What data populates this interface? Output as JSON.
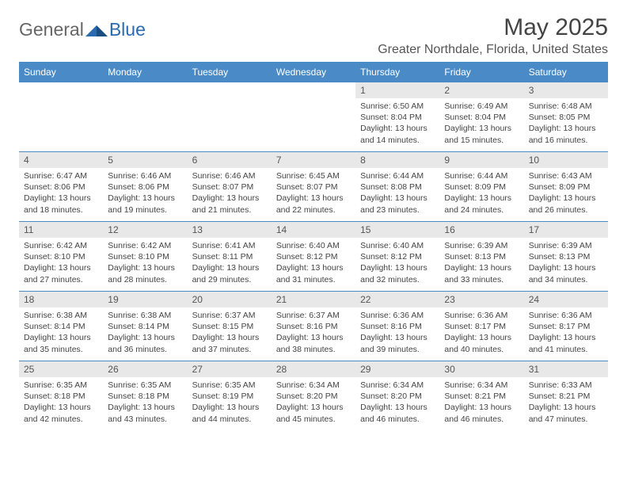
{
  "logo": {
    "text_left": "General",
    "text_right": "Blue"
  },
  "title": {
    "month": "May 2025",
    "location": "Greater Northdale, Florida, United States"
  },
  "colors": {
    "header_bg": "#4a8bc7",
    "header_text": "#ffffff",
    "daynum_bg": "#e8e8e8",
    "border": "#4a8bc7"
  },
  "days_header": [
    "Sunday",
    "Monday",
    "Tuesday",
    "Wednesday",
    "Thursday",
    "Friday",
    "Saturday"
  ],
  "weeks": [
    [
      {
        "num": "",
        "sunrise": "",
        "sunset": "",
        "daylight": ""
      },
      {
        "num": "",
        "sunrise": "",
        "sunset": "",
        "daylight": ""
      },
      {
        "num": "",
        "sunrise": "",
        "sunset": "",
        "daylight": ""
      },
      {
        "num": "",
        "sunrise": "",
        "sunset": "",
        "daylight": ""
      },
      {
        "num": "1",
        "sunrise": "Sunrise: 6:50 AM",
        "sunset": "Sunset: 8:04 PM",
        "daylight": "Daylight: 13 hours and 14 minutes."
      },
      {
        "num": "2",
        "sunrise": "Sunrise: 6:49 AM",
        "sunset": "Sunset: 8:04 PM",
        "daylight": "Daylight: 13 hours and 15 minutes."
      },
      {
        "num": "3",
        "sunrise": "Sunrise: 6:48 AM",
        "sunset": "Sunset: 8:05 PM",
        "daylight": "Daylight: 13 hours and 16 minutes."
      }
    ],
    [
      {
        "num": "4",
        "sunrise": "Sunrise: 6:47 AM",
        "sunset": "Sunset: 8:06 PM",
        "daylight": "Daylight: 13 hours and 18 minutes."
      },
      {
        "num": "5",
        "sunrise": "Sunrise: 6:46 AM",
        "sunset": "Sunset: 8:06 PM",
        "daylight": "Daylight: 13 hours and 19 minutes."
      },
      {
        "num": "6",
        "sunrise": "Sunrise: 6:46 AM",
        "sunset": "Sunset: 8:07 PM",
        "daylight": "Daylight: 13 hours and 21 minutes."
      },
      {
        "num": "7",
        "sunrise": "Sunrise: 6:45 AM",
        "sunset": "Sunset: 8:07 PM",
        "daylight": "Daylight: 13 hours and 22 minutes."
      },
      {
        "num": "8",
        "sunrise": "Sunrise: 6:44 AM",
        "sunset": "Sunset: 8:08 PM",
        "daylight": "Daylight: 13 hours and 23 minutes."
      },
      {
        "num": "9",
        "sunrise": "Sunrise: 6:44 AM",
        "sunset": "Sunset: 8:09 PM",
        "daylight": "Daylight: 13 hours and 24 minutes."
      },
      {
        "num": "10",
        "sunrise": "Sunrise: 6:43 AM",
        "sunset": "Sunset: 8:09 PM",
        "daylight": "Daylight: 13 hours and 26 minutes."
      }
    ],
    [
      {
        "num": "11",
        "sunrise": "Sunrise: 6:42 AM",
        "sunset": "Sunset: 8:10 PM",
        "daylight": "Daylight: 13 hours and 27 minutes."
      },
      {
        "num": "12",
        "sunrise": "Sunrise: 6:42 AM",
        "sunset": "Sunset: 8:10 PM",
        "daylight": "Daylight: 13 hours and 28 minutes."
      },
      {
        "num": "13",
        "sunrise": "Sunrise: 6:41 AM",
        "sunset": "Sunset: 8:11 PM",
        "daylight": "Daylight: 13 hours and 29 minutes."
      },
      {
        "num": "14",
        "sunrise": "Sunrise: 6:40 AM",
        "sunset": "Sunset: 8:12 PM",
        "daylight": "Daylight: 13 hours and 31 minutes."
      },
      {
        "num": "15",
        "sunrise": "Sunrise: 6:40 AM",
        "sunset": "Sunset: 8:12 PM",
        "daylight": "Daylight: 13 hours and 32 minutes."
      },
      {
        "num": "16",
        "sunrise": "Sunrise: 6:39 AM",
        "sunset": "Sunset: 8:13 PM",
        "daylight": "Daylight: 13 hours and 33 minutes."
      },
      {
        "num": "17",
        "sunrise": "Sunrise: 6:39 AM",
        "sunset": "Sunset: 8:13 PM",
        "daylight": "Daylight: 13 hours and 34 minutes."
      }
    ],
    [
      {
        "num": "18",
        "sunrise": "Sunrise: 6:38 AM",
        "sunset": "Sunset: 8:14 PM",
        "daylight": "Daylight: 13 hours and 35 minutes."
      },
      {
        "num": "19",
        "sunrise": "Sunrise: 6:38 AM",
        "sunset": "Sunset: 8:14 PM",
        "daylight": "Daylight: 13 hours and 36 minutes."
      },
      {
        "num": "20",
        "sunrise": "Sunrise: 6:37 AM",
        "sunset": "Sunset: 8:15 PM",
        "daylight": "Daylight: 13 hours and 37 minutes."
      },
      {
        "num": "21",
        "sunrise": "Sunrise: 6:37 AM",
        "sunset": "Sunset: 8:16 PM",
        "daylight": "Daylight: 13 hours and 38 minutes."
      },
      {
        "num": "22",
        "sunrise": "Sunrise: 6:36 AM",
        "sunset": "Sunset: 8:16 PM",
        "daylight": "Daylight: 13 hours and 39 minutes."
      },
      {
        "num": "23",
        "sunrise": "Sunrise: 6:36 AM",
        "sunset": "Sunset: 8:17 PM",
        "daylight": "Daylight: 13 hours and 40 minutes."
      },
      {
        "num": "24",
        "sunrise": "Sunrise: 6:36 AM",
        "sunset": "Sunset: 8:17 PM",
        "daylight": "Daylight: 13 hours and 41 minutes."
      }
    ],
    [
      {
        "num": "25",
        "sunrise": "Sunrise: 6:35 AM",
        "sunset": "Sunset: 8:18 PM",
        "daylight": "Daylight: 13 hours and 42 minutes."
      },
      {
        "num": "26",
        "sunrise": "Sunrise: 6:35 AM",
        "sunset": "Sunset: 8:18 PM",
        "daylight": "Daylight: 13 hours and 43 minutes."
      },
      {
        "num": "27",
        "sunrise": "Sunrise: 6:35 AM",
        "sunset": "Sunset: 8:19 PM",
        "daylight": "Daylight: 13 hours and 44 minutes."
      },
      {
        "num": "28",
        "sunrise": "Sunrise: 6:34 AM",
        "sunset": "Sunset: 8:20 PM",
        "daylight": "Daylight: 13 hours and 45 minutes."
      },
      {
        "num": "29",
        "sunrise": "Sunrise: 6:34 AM",
        "sunset": "Sunset: 8:20 PM",
        "daylight": "Daylight: 13 hours and 46 minutes."
      },
      {
        "num": "30",
        "sunrise": "Sunrise: 6:34 AM",
        "sunset": "Sunset: 8:21 PM",
        "daylight": "Daylight: 13 hours and 46 minutes."
      },
      {
        "num": "31",
        "sunrise": "Sunrise: 6:33 AM",
        "sunset": "Sunset: 8:21 PM",
        "daylight": "Daylight: 13 hours and 47 minutes."
      }
    ]
  ]
}
